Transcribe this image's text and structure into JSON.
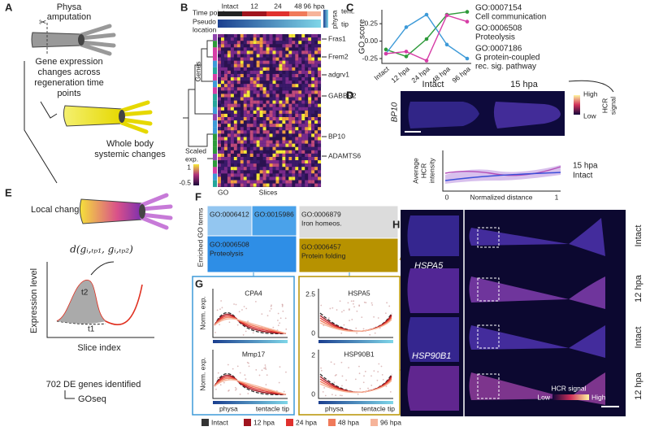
{
  "panels": {
    "a": {
      "letter": "A",
      "title": [
        "Physa",
        "amputation"
      ],
      "text1": [
        "Gene expression",
        "changes across",
        "regeneration time",
        "points"
      ],
      "text2": [
        "Whole body",
        "systemic changes"
      ]
    },
    "b": {
      "letter": "B",
      "time_point": "Time point",
      "timepoints": [
        "Intact",
        "12",
        "24",
        "48",
        "96 hpa"
      ],
      "timepoint_colors": [
        "#222222",
        "#a0141e",
        "#e0312e",
        "#f07a5a",
        "#f6b49a"
      ],
      "pseudo": [
        "Pseudo",
        "location"
      ],
      "loc_legend": [
        "physa",
        "tent.",
        "tip"
      ],
      "genes": [
        "Fras1",
        "Frem2",
        "adgrv1",
        "GABBR2",
        "BP10",
        "ADAMTS6"
      ],
      "genes_label": "Genes",
      "scaled": [
        "Scaled",
        "exp."
      ],
      "scale_ticks": [
        "1",
        "-0.5"
      ],
      "go": "GO",
      "slices": "Slices"
    },
    "d": {
      "letter": "D",
      "intact": "Intact",
      "hpa15": "15 hpa",
      "gene": "BP10",
      "high": "High",
      "low": "Low",
      "signal": [
        "HCR",
        "signal"
      ],
      "ylabel": [
        "Average",
        "HCR",
        "intensity"
      ],
      "xlabel": "Normalized distance",
      "xticks": [
        "0",
        "1"
      ],
      "legend": [
        {
          "name": "15 hpa",
          "color": "#b44fb8"
        },
        {
          "name": "Intact",
          "color": "#3b4fd8"
        }
      ]
    },
    "e": {
      "letter": "E",
      "title": "Local changes",
      "formula": "d(gᵢ,ₜₚ₁, gᵢ,ₜₚ₂)",
      "t2": "t2",
      "t1": "t1",
      "ylabel": "Expression level",
      "xlabel": "Slice index",
      "genes": "702 DE genes identified",
      "goseq": "GOseq"
    },
    "f": {
      "letter": "F",
      "ylabel": "Enriched GO terms",
      "boxes": [
        {
          "id": "GO:0006412",
          "name": null,
          "color": "#93c6f0"
        },
        {
          "id": "GO:0015986",
          "name": null,
          "color": "#4aa2ea"
        },
        {
          "id": "GO:0006508",
          "name": "Proteolysis",
          "color": "#2e8ee6"
        },
        {
          "id": "GO:0006879",
          "name": "Iron homeos.",
          "color": "#dcdcdc"
        },
        {
          "id": "GO:0006457",
          "name": "Protein folding",
          "color": "#b79200"
        }
      ]
    },
    "g": {
      "letter": "G",
      "ylabel": "Norm. exp.",
      "genes": [
        "CPA4",
        "Mmp17",
        "HSPA5",
        "HSP90B1"
      ],
      "ticks": [
        "2.5",
        "0",
        "2",
        "0"
      ],
      "xlabels": [
        "physa",
        "tentacle tip"
      ],
      "legend": [
        {
          "name": "Intact",
          "color": "#333333"
        },
        {
          "name": "12 hpa",
          "color": "#a0141e"
        },
        {
          "name": "24 hpa",
          "color": "#e0312e"
        },
        {
          "name": "48 hpa",
          "color": "#f07a5a"
        },
        {
          "name": "96 hpa",
          "color": "#f6b49a"
        }
      ]
    },
    "h": {
      "letter": "H",
      "genes": [
        "HSPA5",
        "HSP90B1"
      ],
      "rows": [
        "Intact",
        "12 hpa",
        "Intact",
        "12 hpa"
      ],
      "signal": "HCR signal",
      "low": "Low",
      "high": "High"
    }
  },
  "chart_data": {
    "type": "line",
    "letter": "C",
    "ylabel": "GO score",
    "categories": [
      "Intact",
      "12 hpa",
      "24 hpa",
      "48 hpa",
      "96 hpa"
    ],
    "ylim": [
      -0.32,
      0.45
    ],
    "yticks": [
      {
        "value": 0.25,
        "label": "0.25"
      },
      {
        "value": 0,
        "label": "0.00"
      },
      {
        "value": -0.25,
        "label": "-0.25"
      }
    ],
    "series": [
      {
        "name": "GO:0007154",
        "description": [
          "Cell communication"
        ],
        "color": "#2e9a3a",
        "values": [
          -0.12,
          -0.22,
          0.03,
          0.38,
          0.42
        ]
      },
      {
        "name": "GO:0006508",
        "description": [
          "Proteolysis"
        ],
        "color": "#3d9ad8",
        "values": [
          -0.18,
          0.2,
          0.38,
          -0.05,
          -0.25
        ]
      },
      {
        "name": "GO:0007186",
        "description": [
          "G protein-coupled",
          "rec. sig. pathway"
        ],
        "color": "#d63ca6",
        "values": [
          -0.18,
          -0.15,
          -0.28,
          0.37,
          0.28
        ]
      }
    ]
  }
}
